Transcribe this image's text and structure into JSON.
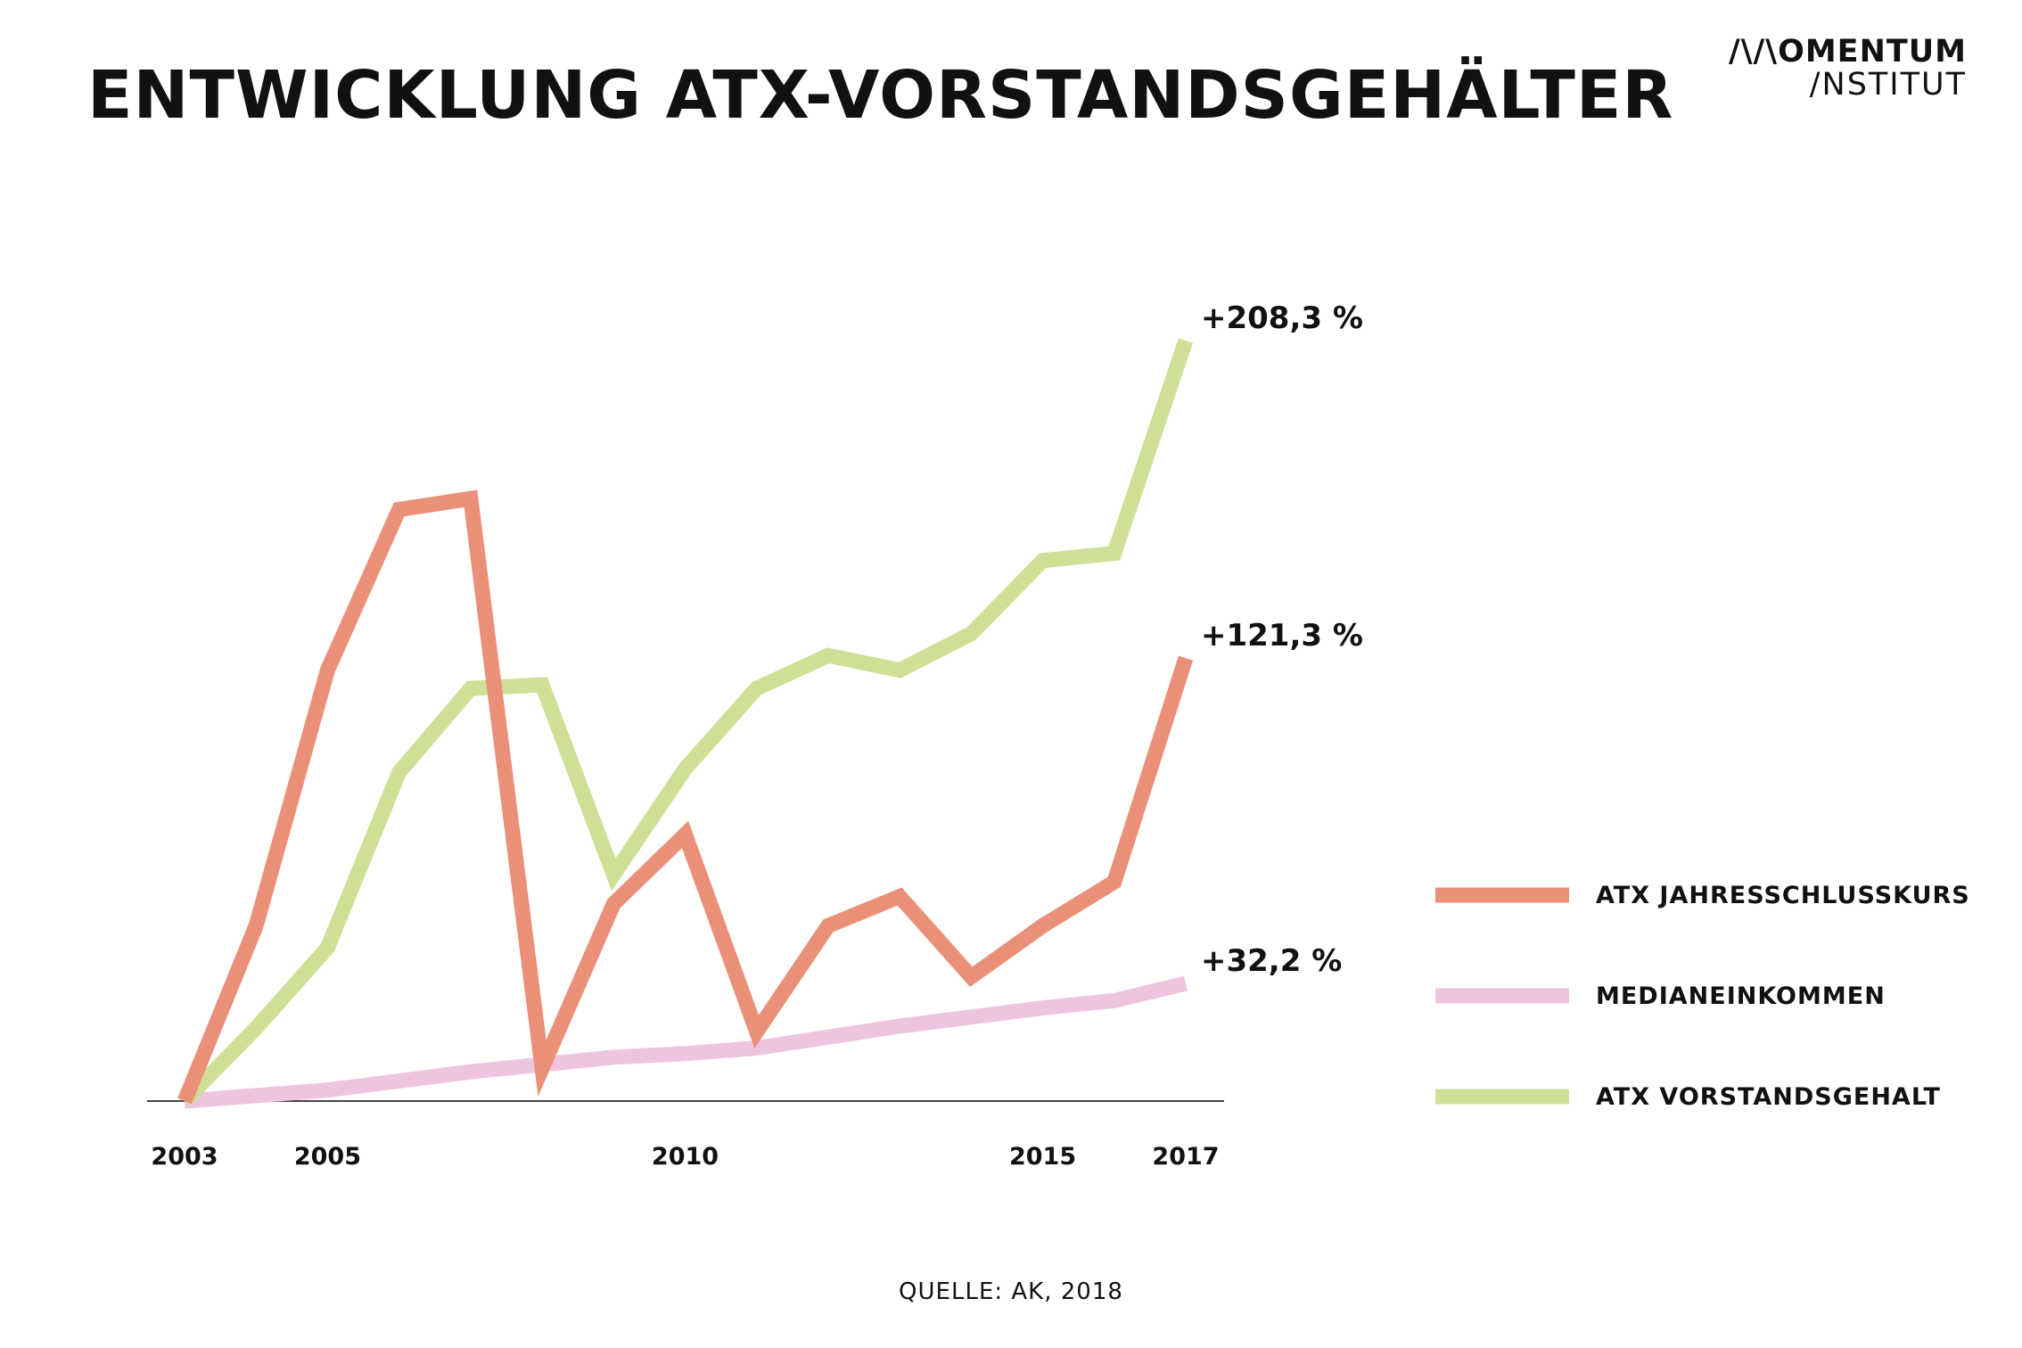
{
  "header": {
    "title": "ENTWICKLUNG ATX-VORSTANDSGEHÄLTER",
    "logo_line1": "/\\/\\OMENTUM",
    "logo_line2": "/NSTITUT"
  },
  "source": "QUELLE: AK, 2018",
  "chart_data": {
    "type": "line",
    "title": "ENTWICKLUNG ATX-VORSTANDSGEHÄLTER",
    "x": [
      2003,
      2004,
      2005,
      2006,
      2007,
      2008,
      2009,
      2010,
      2011,
      2012,
      2013,
      2014,
      2015,
      2016,
      2017
    ],
    "x_ticks": [
      "2003",
      "2005",
      "2010",
      "2015",
      "2017"
    ],
    "xlim": [
      2003,
      2017
    ],
    "ylim": [
      0,
      240
    ],
    "grid": false,
    "legend_position": "right",
    "series": [
      {
        "name": "ATX JAHRESSCHLUSSKURS",
        "color": "#ea9078",
        "values": [
          0,
          48,
          118,
          162,
          165,
          9,
          54,
          73,
          19,
          48,
          56,
          34,
          48,
          60,
          121.3
        ],
        "end_label": "+121,3 %"
      },
      {
        "name": "MEDIANEINKOMMEN",
        "color": "#efc4df",
        "values": [
          0,
          1.5,
          3,
          5.5,
          8,
          10,
          12,
          13,
          14.5,
          17.5,
          20.5,
          23,
          25.5,
          27.5,
          32.2
        ],
        "end_label": "+32,2 %"
      },
      {
        "name": "ATX VORSTANDSGEHALT",
        "color": "#cfe096",
        "values": [
          0,
          20,
          42,
          90,
          113,
          114,
          62,
          91,
          113,
          122,
          118,
          128,
          148,
          150,
          208.3
        ],
        "end_label": "+208,3 %"
      }
    ]
  }
}
